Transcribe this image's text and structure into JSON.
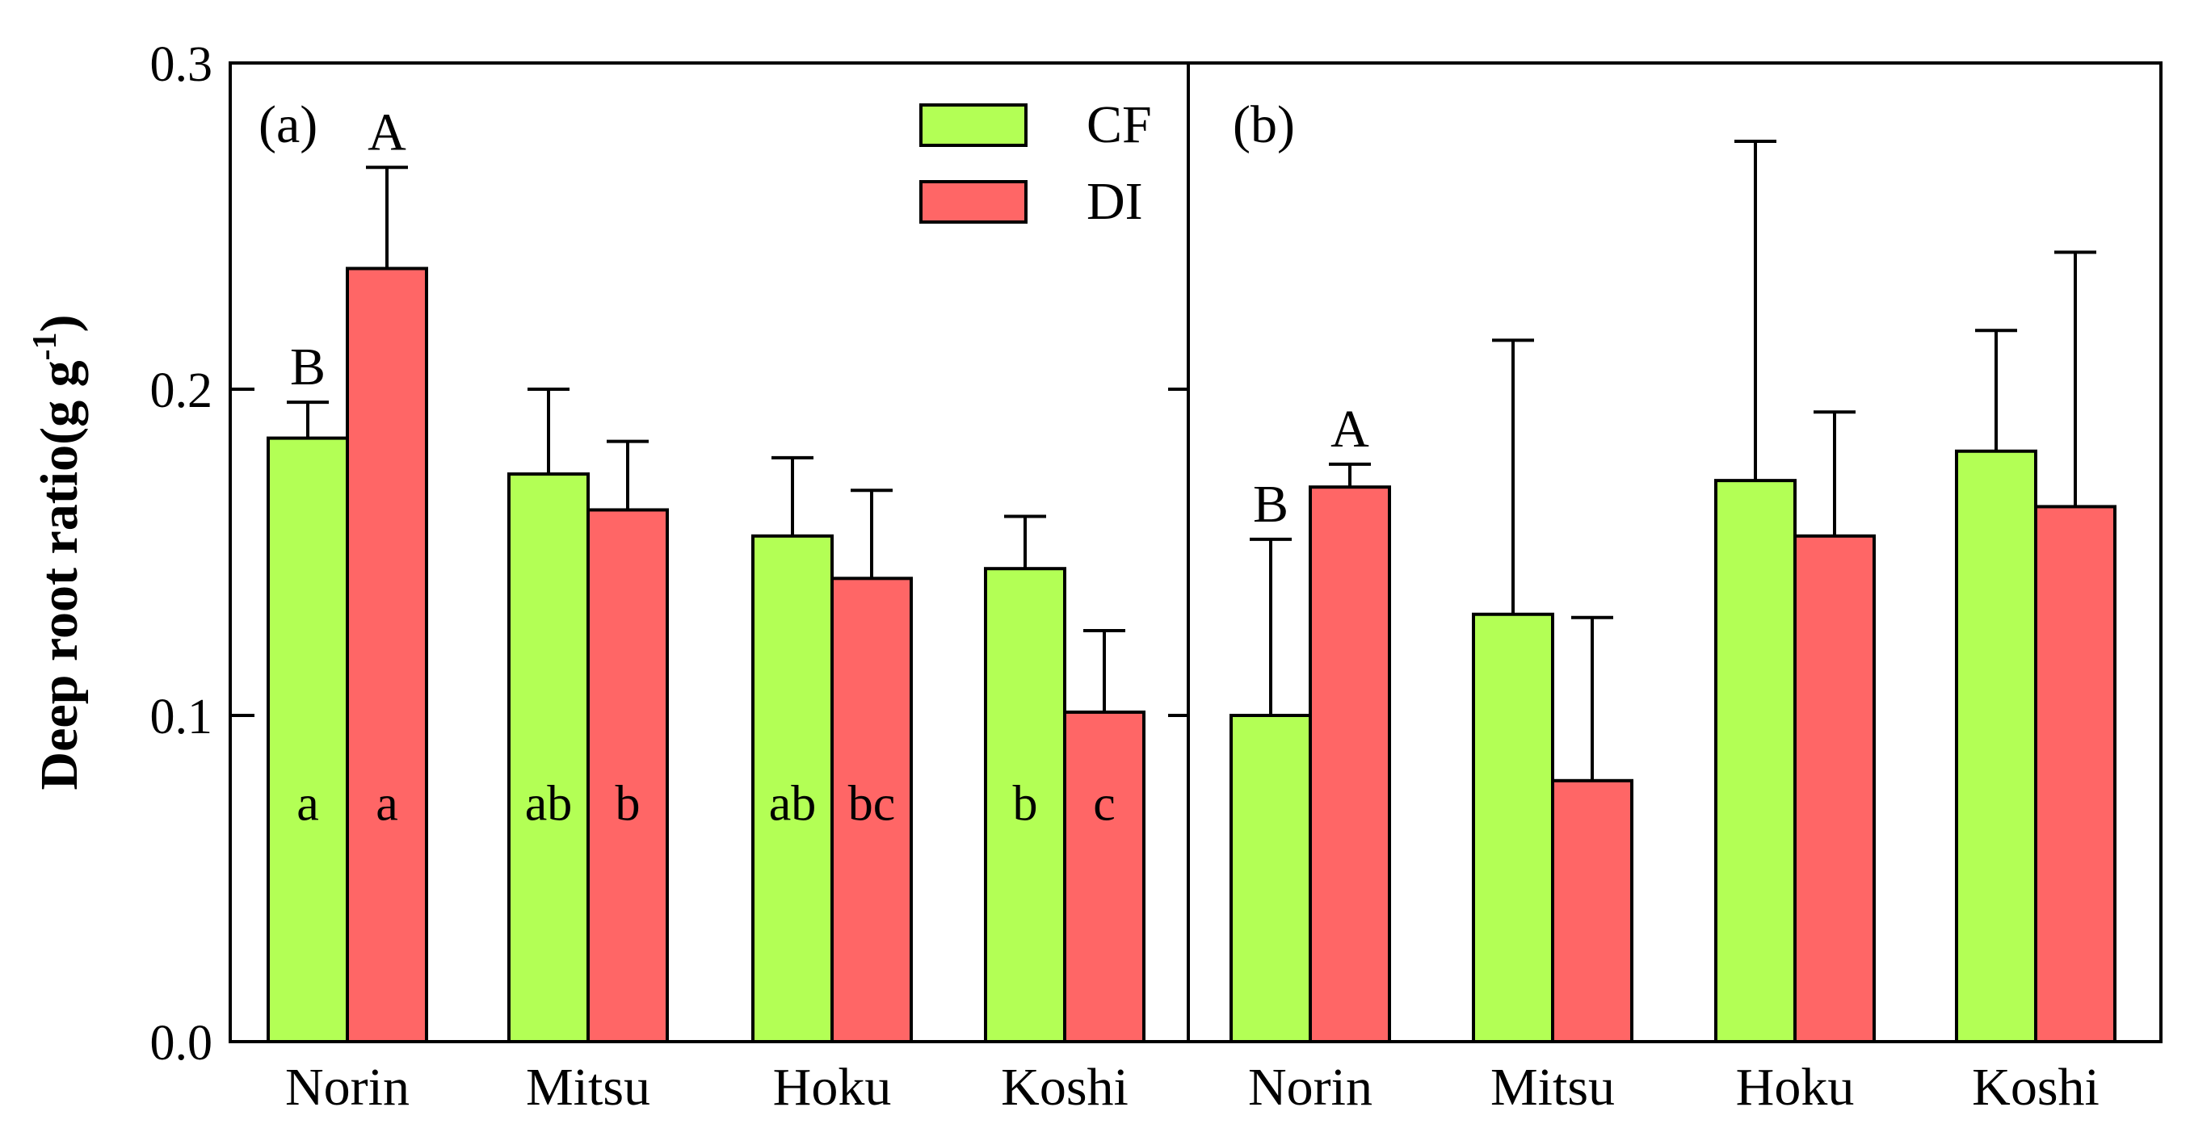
{
  "chart_data": {
    "type": "bar",
    "ylabel": "Deep root ratio(g g",
    "ylabel_sup": "-1",
    "ylabel_close": ")",
    "ylim": [
      0,
      0.3
    ],
    "yticks": [
      "0.0",
      "0.1",
      "0.2",
      "0.3"
    ],
    "categories": [
      "Norin",
      "Mitsu",
      "Hoku",
      "Koshi"
    ],
    "legend": {
      "position": "top-center of panel (a)",
      "items": [
        {
          "name": "CF",
          "color": "#b3ff55"
        },
        {
          "name": "DI",
          "color": "#ff6666"
        }
      ]
    },
    "panels": [
      {
        "label": "(a)",
        "series": [
          {
            "name": "CF",
            "color": "#b3ff55",
            "values": [
              0.185,
              0.174,
              0.155,
              0.145
            ],
            "errors": [
              0.011,
              0.026,
              0.024,
              0.016
            ],
            "letters": [
              "a",
              "ab",
              "ab",
              "b"
            ]
          },
          {
            "name": "DI",
            "color": "#ff6666",
            "values": [
              0.237,
              0.163,
              0.142,
              0.101
            ],
            "errors": [
              0.031,
              0.021,
              0.027,
              0.025
            ],
            "letters": [
              "a",
              "b",
              "bc",
              "c"
            ]
          }
        ],
        "upper_letters": [
          {
            "category": 0,
            "series": 0,
            "text": "B"
          },
          {
            "category": 0,
            "series": 1,
            "text": "A"
          }
        ]
      },
      {
        "label": "(b)",
        "series": [
          {
            "name": "CF",
            "color": "#b3ff55",
            "values": [
              0.1,
              0.131,
              0.172,
              0.181
            ],
            "errors": [
              0.054,
              0.084,
              0.104,
              0.037
            ],
            "letters": []
          },
          {
            "name": "DI",
            "color": "#ff6666",
            "values": [
              0.17,
              0.08,
              0.155,
              0.164
            ],
            "errors": [
              0.007,
              0.05,
              0.038,
              0.078
            ],
            "letters": []
          }
        ],
        "upper_letters": [
          {
            "category": 0,
            "series": 0,
            "text": "B"
          },
          {
            "category": 0,
            "series": 1,
            "text": "A"
          }
        ]
      }
    ]
  }
}
